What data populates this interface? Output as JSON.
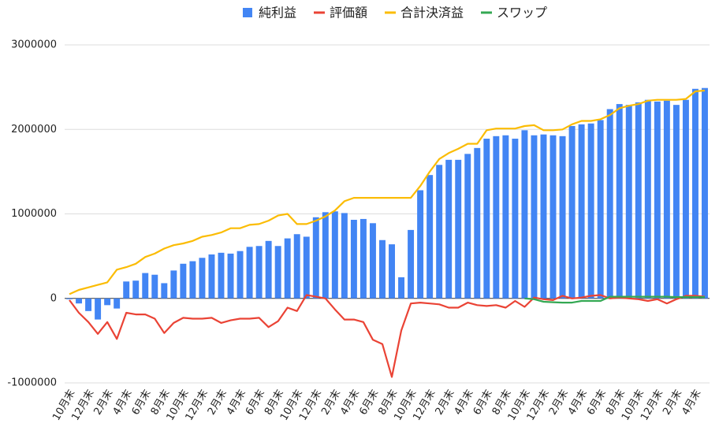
{
  "chart_data": {
    "type": "combo",
    "categories": [
      "10月末",
      null,
      "12月末",
      null,
      "2月末",
      null,
      "4月末",
      null,
      "6月末",
      null,
      "8月末",
      null,
      "10月末",
      null,
      "12月末",
      null,
      "2月末",
      null,
      "4月末",
      null,
      "6月末",
      null,
      "8月末",
      null,
      "10月末",
      null,
      "12月末",
      null,
      "2月末",
      null,
      "4月末",
      null,
      "6月末",
      null,
      "8月末",
      null,
      "10月末",
      null,
      "12月末",
      null,
      "2月末",
      null,
      "4月末",
      null,
      "6月末",
      null,
      "8月末",
      null,
      "10月末",
      null,
      "12月末",
      null,
      "2月末",
      null,
      "4月末",
      null,
      "6月末",
      null,
      "8月末",
      null,
      "10月末",
      null,
      "12月末",
      null,
      "2月末",
      null,
      "4月末",
      null
    ],
    "series": [
      {
        "name": "純利益",
        "kind": "bar",
        "color": "#4285f4",
        "values": [
          -10000,
          -60000,
          -150000,
          -250000,
          -80000,
          -120000,
          200000,
          210000,
          300000,
          280000,
          180000,
          330000,
          410000,
          440000,
          480000,
          520000,
          540000,
          530000,
          560000,
          610000,
          620000,
          680000,
          620000,
          710000,
          760000,
          730000,
          960000,
          1020000,
          1030000,
          1010000,
          930000,
          940000,
          890000,
          690000,
          640000,
          250000,
          810000,
          1280000,
          1460000,
          1580000,
          1640000,
          1640000,
          1710000,
          1780000,
          1890000,
          1920000,
          1930000,
          1890000,
          1990000,
          1930000,
          1940000,
          1930000,
          1920000,
          2040000,
          2060000,
          2070000,
          2110000,
          2240000,
          2300000,
          2290000,
          2320000,
          2350000,
          2330000,
          2340000,
          2290000,
          2350000,
          2480000,
          2490000
        ]
      },
      {
        "name": "評価額",
        "kind": "line",
        "color": "#ea4335",
        "values": [
          -20000,
          -170000,
          -280000,
          -420000,
          -280000,
          -480000,
          -170000,
          -190000,
          -190000,
          -240000,
          -410000,
          -290000,
          -230000,
          -240000,
          -240000,
          -230000,
          -290000,
          -260000,
          -240000,
          -240000,
          -230000,
          -340000,
          -270000,
          -110000,
          -150000,
          40000,
          20000,
          0,
          -130000,
          -250000,
          -250000,
          -280000,
          -490000,
          -540000,
          -930000,
          -380000,
          -60000,
          -50000,
          -60000,
          -70000,
          -110000,
          -110000,
          -50000,
          -80000,
          -90000,
          -80000,
          -110000,
          -30000,
          -100000,
          10000,
          -10000,
          -20000,
          30000,
          0,
          10000,
          30000,
          40000,
          0,
          10000,
          0,
          -10000,
          -30000,
          -10000,
          -60000,
          -10000,
          30000,
          30000,
          20000
        ]
      },
      {
        "name": "合計決済益",
        "kind": "line",
        "color": "#fbbc04",
        "values": [
          50000,
          100000,
          130000,
          160000,
          190000,
          340000,
          370000,
          410000,
          490000,
          530000,
          590000,
          630000,
          650000,
          680000,
          730000,
          750000,
          780000,
          830000,
          830000,
          870000,
          880000,
          920000,
          980000,
          1000000,
          880000,
          880000,
          920000,
          970000,
          1040000,
          1150000,
          1190000,
          1190000,
          1190000,
          1190000,
          1190000,
          1190000,
          1190000,
          1330000,
          1500000,
          1650000,
          1720000,
          1770000,
          1830000,
          1830000,
          1990000,
          2010000,
          2010000,
          2010000,
          2040000,
          2050000,
          1990000,
          1990000,
          2000000,
          2060000,
          2100000,
          2100000,
          2120000,
          2170000,
          2250000,
          2280000,
          2300000,
          2340000,
          2350000,
          2350000,
          2350000,
          2360000,
          2450000,
          2460000
        ]
      },
      {
        "name": "スワップ",
        "kind": "line",
        "color": "#34a853",
        "values": [
          null,
          null,
          null,
          null,
          null,
          null,
          null,
          null,
          null,
          null,
          null,
          null,
          null,
          null,
          null,
          null,
          null,
          null,
          null,
          null,
          null,
          null,
          null,
          null,
          null,
          null,
          null,
          null,
          null,
          null,
          null,
          null,
          null,
          null,
          null,
          null,
          null,
          null,
          null,
          null,
          null,
          null,
          null,
          null,
          null,
          null,
          null,
          null,
          0,
          -10000,
          -40000,
          -45000,
          -50000,
          -50000,
          -30000,
          -30000,
          -30000,
          20000,
          20000,
          20000,
          20000,
          20000,
          20000,
          20000,
          15000,
          15000,
          15000,
          15000
        ]
      }
    ],
    "ylim": [
      -1000000,
      3000000
    ],
    "yticks": [
      -1000000,
      0,
      1000000,
      2000000,
      3000000
    ],
    "grid": true,
    "legend": "top"
  }
}
